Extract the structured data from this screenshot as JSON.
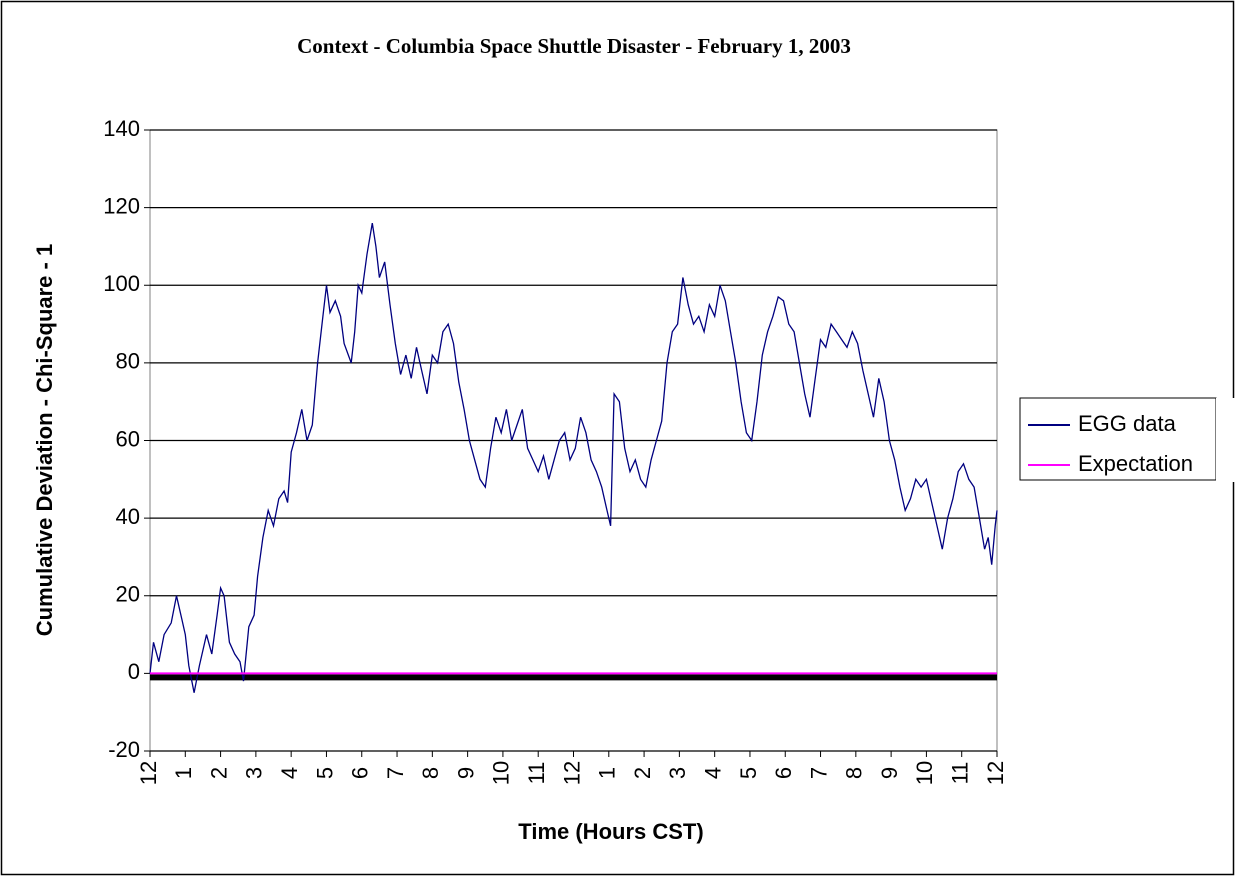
{
  "chart_data": {
    "type": "line",
    "title": "Context - Columbia Space Shuttle Disaster - February 1, 2003",
    "x_label": "Time (Hours CST)",
    "y_label": "Cumulative Deviation - Chi-Square - 1",
    "xlim": [
      0,
      24
    ],
    "xticks": [
      {
        "value": 0,
        "label": "12"
      },
      1,
      2,
      3,
      4,
      5,
      6,
      7,
      8,
      9,
      10,
      11,
      12,
      {
        "value": 13,
        "label": "1"
      },
      {
        "value": 14,
        "label": "2"
      },
      {
        "value": 15,
        "label": "3"
      },
      {
        "value": 16,
        "label": "4"
      },
      {
        "value": 17,
        "label": "5"
      },
      {
        "value": 18,
        "label": "6"
      },
      {
        "value": 19,
        "label": "7"
      },
      {
        "value": 20,
        "label": "8"
      },
      {
        "value": 21,
        "label": "9"
      },
      {
        "value": 22,
        "label": "10"
      },
      {
        "value": 23,
        "label": "11"
      },
      {
        "value": 24,
        "label": "12"
      }
    ],
    "ylim": [
      -20,
      140
    ],
    "yticks": [
      -20,
      0,
      20,
      40,
      60,
      80,
      100,
      120,
      140
    ],
    "grid": true,
    "legend": "right",
    "series": [
      {
        "name": "EGG data",
        "color": "#000080",
        "x": [
          0,
          0.1,
          0.25,
          0.4,
          0.6,
          0.75,
          0.9,
          1.0,
          1.1,
          1.25,
          1.4,
          1.6,
          1.75,
          1.9,
          2.0,
          2.1,
          2.25,
          2.4,
          2.55,
          2.65,
          2.8,
          2.95,
          3.05,
          3.2,
          3.35,
          3.5,
          3.65,
          3.8,
          3.9,
          4.0,
          4.15,
          4.3,
          4.45,
          4.6,
          4.75,
          4.9,
          5.0,
          5.1,
          5.25,
          5.4,
          5.5,
          5.7,
          5.8,
          5.9,
          6.0,
          6.15,
          6.3,
          6.4,
          6.5,
          6.65,
          6.8,
          6.95,
          7.1,
          7.25,
          7.4,
          7.55,
          7.7,
          7.85,
          8.0,
          8.15,
          8.3,
          8.45,
          8.6,
          8.75,
          8.9,
          9.05,
          9.2,
          9.35,
          9.5,
          9.65,
          9.8,
          9.95,
          10.1,
          10.25,
          10.4,
          10.55,
          10.7,
          10.85,
          11.0,
          11.15,
          11.3,
          11.45,
          11.6,
          11.75,
          11.9,
          12.05,
          12.2,
          12.35,
          12.5,
          12.65,
          12.8,
          12.95,
          13.05,
          13.15,
          13.3,
          13.45,
          13.6,
          13.75,
          13.9,
          14.05,
          14.2,
          14.35,
          14.5,
          14.65,
          14.8,
          14.95,
          15.1,
          15.25,
          15.4,
          15.55,
          15.7,
          15.85,
          16.0,
          16.15,
          16.3,
          16.45,
          16.6,
          16.75,
          16.9,
          17.05,
          17.2,
          17.35,
          17.5,
          17.65,
          17.8,
          17.95,
          18.1,
          18.25,
          18.4,
          18.55,
          18.7,
          18.85,
          19.0,
          19.15,
          19.3,
          19.45,
          19.6,
          19.75,
          19.9,
          20.05,
          20.2,
          20.35,
          20.5,
          20.65,
          20.8,
          20.95,
          21.1,
          21.25,
          21.4,
          21.55,
          21.7,
          21.85,
          22.0,
          22.15,
          22.3,
          22.45,
          22.6,
          22.75,
          22.9,
          23.05,
          23.2,
          23.35,
          23.5,
          23.65,
          23.75,
          23.85,
          23.95,
          24.0
        ],
        "values": [
          0,
          8,
          3,
          10,
          13,
          20,
          14,
          10,
          2,
          -5,
          2,
          10,
          5,
          15,
          22,
          20,
          8,
          5,
          3,
          -2,
          12,
          15,
          25,
          35,
          42,
          38,
          45,
          47,
          44,
          57,
          62,
          68,
          60,
          64,
          80,
          92,
          100,
          93,
          96,
          92,
          85,
          80,
          88,
          100,
          98,
          108,
          116,
          110,
          102,
          106,
          95,
          85,
          77,
          82,
          76,
          84,
          78,
          72,
          82,
          80,
          88,
          90,
          85,
          75,
          68,
          60,
          55,
          50,
          48,
          58,
          66,
          62,
          68,
          60,
          64,
          68,
          58,
          55,
          52,
          56,
          50,
          55,
          60,
          62,
          55,
          58,
          66,
          62,
          55,
          52,
          48,
          42,
          38,
          72,
          70,
          58,
          52,
          55,
          50,
          48,
          55,
          60,
          65,
          80,
          88,
          90,
          102,
          95,
          90,
          92,
          88,
          95,
          92,
          100,
          96,
          88,
          80,
          70,
          62,
          60,
          70,
          82,
          88,
          92,
          97,
          96,
          90,
          88,
          80,
          72,
          66,
          76,
          86,
          84,
          90,
          88,
          86,
          84,
          88,
          85,
          78,
          72,
          66,
          76,
          70,
          60,
          55,
          48,
          42,
          45,
          50,
          48,
          50,
          44,
          38,
          32,
          40,
          45,
          52,
          54,
          50,
          48,
          40,
          32,
          35,
          28,
          38,
          42
        ]
      },
      {
        "name": "Expectation",
        "color": "#ff00ff",
        "x": [
          0,
          24
        ],
        "values": [
          0,
          0
        ]
      }
    ]
  }
}
